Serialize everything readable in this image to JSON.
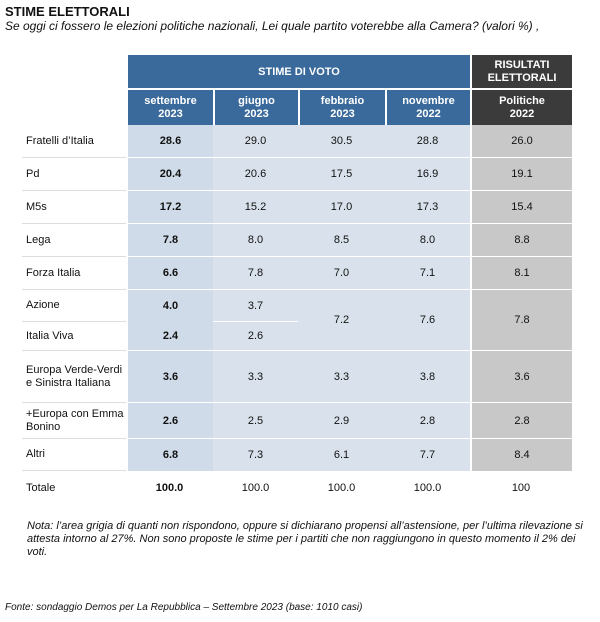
{
  "title": "STIME ELETTORALI",
  "subtitle": "Se oggi ci fossero le elezioni politiche nazionali, Lei quale partito voterebbe alla Camera? (valori %)      ,",
  "header": {
    "group_estimates": "STIME DI VOTO",
    "group_results_1": "RISULTATI",
    "group_results_2": "ELETTORALI",
    "cols": [
      {
        "l1": "settembre",
        "l2": "2023"
      },
      {
        "l1": "giugno",
        "l2": "2023"
      },
      {
        "l1": "febbraio",
        "l2": "2023"
      },
      {
        "l1": "novembre",
        "l2": "2022"
      },
      {
        "l1": "Politiche",
        "l2": "2022"
      }
    ]
  },
  "rows": [
    {
      "party": "Fratelli d’Italia",
      "v": [
        "28.6",
        "29.0",
        "30.5",
        "28.8",
        "26.0"
      ]
    },
    {
      "party": "Pd",
      "v": [
        "20.4",
        "20.6",
        "17.5",
        "16.9",
        "19.1"
      ]
    },
    {
      "party": "M5s",
      "v": [
        "17.2",
        "15.2",
        "17.0",
        "17.3",
        "15.4"
      ]
    },
    {
      "party": "Lega",
      "v": [
        "7.8",
        "8.0",
        "8.5",
        "8.0",
        "8.8"
      ]
    },
    {
      "party": "Forza Italia",
      "v": [
        "6.6",
        "7.8",
        "7.0",
        "7.1",
        "8.1"
      ]
    },
    {
      "party": "Azione",
      "v": [
        "4.0",
        "3.7"
      ]
    },
    {
      "party": "Italia Viva",
      "v": [
        "2.4",
        "2.6"
      ]
    },
    {
      "party": "Europa Verde-Verdi e Sinistra Italiana",
      "v": [
        "3.6",
        "3.3",
        "3.3",
        "3.8",
        "3.6"
      ]
    },
    {
      "party": "+Europa con Emma Bonino",
      "v": [
        "2.6",
        "2.5",
        "2.9",
        "2.8",
        "2.8"
      ]
    },
    {
      "party": "Altri",
      "v": [
        "6.8",
        "7.3",
        "6.1",
        "7.7",
        "8.4"
      ]
    }
  ],
  "merged_azione_iv": [
    "7.2",
    "7.6",
    "7.8"
  ],
  "total": {
    "label": "Totale",
    "v": [
      "100.0",
      "100.0",
      "100.0",
      "100.0",
      "100"
    ]
  },
  "note": "Nota: l’area grigia di quanti non rispondono, oppure si dichiarano propensi all’astensione, per l’ultima rilevazione si attesta intorno al 27%. Non sono proposte le stime per i partiti che non raggiungono in questo momento il 2% dei voti.",
  "source": "Fonte: sondaggio Demos per La Repubblica – Settembre 2023 (base: 1010 casi)",
  "colors": {
    "header_blue": "#3a6a9b",
    "header_dark": "#3b3b3b",
    "cell_blue": "#d9e2ec",
    "cell_bold": "#cfdbe8",
    "cell_grey": "#c8c8c8"
  }
}
